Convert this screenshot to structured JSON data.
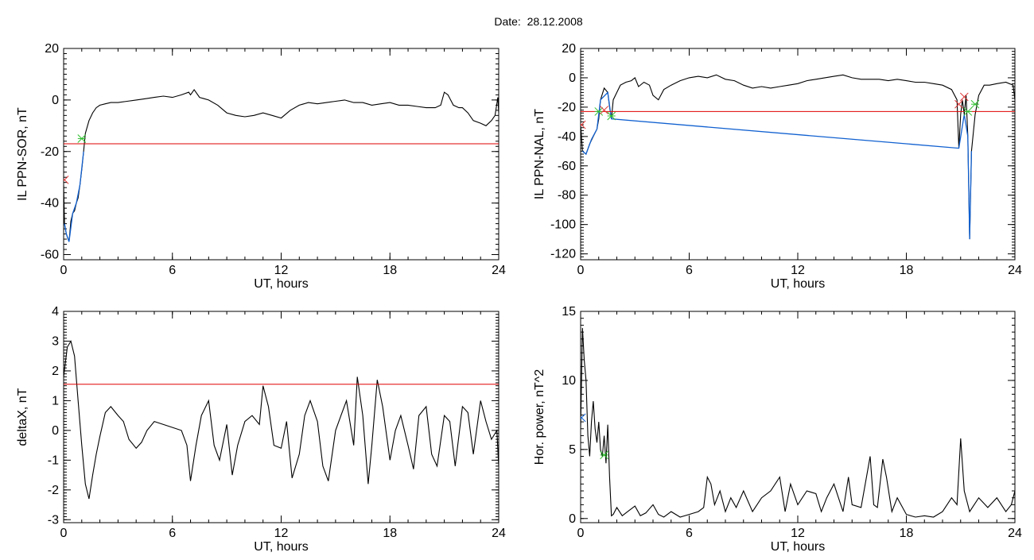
{
  "figure": {
    "title": "Date:  28.12.2008"
  },
  "colors": {
    "trace": "#000000",
    "threshold": "#e00000",
    "highlight": "#1060d0",
    "marker_red": "#e03030",
    "marker_green": "#30c030"
  },
  "chart_data": [
    {
      "type": "line",
      "id": "il-sor",
      "xlabel": "UT, hours",
      "ylabel": "IL PPN-SOR, nT",
      "xlim": [
        0,
        24
      ],
      "ylim": [
        -62,
        20
      ],
      "xticks": [
        0,
        6,
        12,
        18,
        24
      ],
      "yticks": [
        -60,
        -40,
        -20,
        0,
        20
      ],
      "threshold": -17,
      "series": [
        {
          "color": "black",
          "x": [
            0,
            0.05,
            0.15,
            0.3,
            0.4,
            0.5,
            0.6,
            0.7,
            0.8,
            0.9,
            1.0,
            1.1,
            1.2,
            1.4,
            1.6,
            1.8,
            2.0,
            2.3,
            2.6,
            3,
            3.5,
            4,
            4.5,
            5,
            5.5,
            6,
            6.5,
            6.9,
            7.0,
            7.2,
            7.5,
            8,
            8.5,
            9,
            9.5,
            10,
            10.5,
            11,
            11.5,
            12,
            12.5,
            13,
            13.5,
            14,
            14.5,
            15,
            15.5,
            16,
            16.5,
            17,
            17.5,
            18,
            18.5,
            19,
            19.5,
            20,
            20.5,
            20.8,
            21.0,
            21.2,
            21.5,
            21.8,
            22,
            22.3,
            22.6,
            23,
            23.3,
            23.6,
            23.8,
            23.95,
            24
          ],
          "y": [
            -33,
            -48,
            -52,
            -55,
            -47,
            -44,
            -43,
            -40,
            -38,
            -33,
            -27,
            -20,
            -13,
            -8,
            -5,
            -3,
            -2,
            -1.5,
            -1,
            -1,
            -0.5,
            0,
            0.5,
            1,
            1.5,
            1,
            2,
            3,
            2,
            4,
            1,
            0,
            -2,
            -5,
            -6,
            -6.5,
            -6,
            -5,
            -6,
            -7,
            -4,
            -2,
            -1,
            -1.5,
            -1,
            -0.5,
            0,
            -1,
            -1,
            -2,
            -1.5,
            -1,
            -2,
            -2,
            -2.5,
            -3,
            -3,
            -2,
            3,
            2,
            -2,
            -3,
            -3,
            -5,
            -8,
            -9,
            -10,
            -8,
            -6,
            1,
            -5
          ]
        }
      ],
      "highlight": {
        "x": [
          0.05,
          0.15,
          0.3,
          0.5,
          0.7,
          0.9,
          1.1
        ],
        "y": [
          -48,
          -52,
          -55,
          -44,
          -40,
          -33,
          -20
        ]
      },
      "markers": [
        {
          "x": 0.05,
          "y": -31,
          "color": "red"
        },
        {
          "x": 1.0,
          "y": -15,
          "color": "green"
        }
      ]
    },
    {
      "type": "line",
      "id": "il-nal",
      "xlabel": "UT, hours",
      "ylabel": "IL PPN-NAL, nT",
      "xlim": [
        0,
        24
      ],
      "ylim": [
        -124,
        20
      ],
      "xticks": [
        0,
        6,
        12,
        18,
        24
      ],
      "yticks": [
        -120,
        -100,
        -80,
        -60,
        -40,
        -20,
        0,
        20
      ],
      "threshold": -23,
      "series": [
        {
          "color": "black",
          "x": [
            0,
            0.1,
            0.3,
            0.5,
            0.7,
            0.9,
            1.0,
            1.1,
            1.3,
            1.5,
            1.6,
            1.7,
            1.8,
            2.0,
            2.2,
            2.5,
            2.8,
            3.0,
            3.2,
            3.5,
            3.8,
            4.0,
            4.3,
            4.6,
            5,
            5.5,
            6,
            6.5,
            7,
            7.5,
            8,
            8.5,
            9,
            9.5,
            10,
            10.5,
            11,
            11.5,
            12,
            12.5,
            13,
            13.5,
            14,
            14.5,
            15,
            15.5,
            16,
            16.5,
            17,
            17.5,
            18,
            18.5,
            19,
            19.5,
            20,
            20.5,
            20.8,
            20.9,
            21.0,
            21.1,
            21.2,
            21.3,
            21.4,
            21.5,
            21.6,
            21.8,
            22,
            22.3,
            22.6,
            23,
            23.5,
            23.9,
            24
          ],
          "y": [
            -32,
            -50,
            -52,
            -45,
            -40,
            -35,
            -28,
            -15,
            -7,
            -10,
            -20,
            -28,
            -15,
            -10,
            -5,
            -3,
            -2,
            0,
            -6,
            -3,
            -5,
            -12,
            -15,
            -8,
            -5,
            -2,
            0,
            1,
            0,
            2,
            -1,
            -2,
            -5,
            -7,
            -6,
            -7,
            -6,
            -5,
            -4,
            -2,
            -1,
            0,
            1,
            2,
            0,
            -1,
            -1,
            -1,
            -2,
            -1,
            -2,
            -3,
            -3,
            -4,
            -5,
            -8,
            -15,
            -48,
            -25,
            -15,
            -25,
            -12,
            -40,
            -110,
            -50,
            -25,
            -12,
            -5,
            -5,
            -4,
            -3,
            -5,
            -15
          ]
        }
      ],
      "highlight": {
        "x": [
          0.1,
          0.3,
          0.6,
          0.9,
          1.1,
          1.5,
          1.7,
          20.9,
          21.2,
          21.4,
          21.5,
          21.6
        ],
        "y": [
          -50,
          -52,
          -42,
          -35,
          -15,
          -10,
          -28,
          -48,
          -25,
          -40,
          -110,
          -50
        ]
      },
      "markers": [
        {
          "x": 0.05,
          "y": -32,
          "color": "red"
        },
        {
          "x": 1.0,
          "y": -23,
          "color": "green"
        },
        {
          "x": 1.3,
          "y": -22,
          "color": "red"
        },
        {
          "x": 1.7,
          "y": -26,
          "color": "green"
        },
        {
          "x": 20.9,
          "y": -18,
          "color": "red"
        },
        {
          "x": 21.2,
          "y": -13,
          "color": "red"
        },
        {
          "x": 21.4,
          "y": -23,
          "color": "green"
        },
        {
          "x": 21.8,
          "y": -18,
          "color": "green"
        }
      ]
    },
    {
      "type": "line",
      "id": "deltax",
      "xlabel": "UT, hours",
      "ylabel": "deltaX, nT",
      "xlim": [
        0,
        24
      ],
      "ylim": [
        -3.1,
        4
      ],
      "xticks": [
        0,
        6,
        12,
        18,
        24
      ],
      "yticks": [
        -3,
        -2,
        -1,
        0,
        1,
        2,
        3,
        4
      ],
      "threshold": 1.55,
      "series": [
        {
          "color": "black",
          "x": [
            0,
            0.2,
            0.4,
            0.6,
            0.8,
            1.0,
            1.2,
            1.4,
            1.6,
            1.8,
            2.0,
            2.3,
            2.6,
            3.0,
            3.3,
            3.6,
            4.0,
            4.3,
            4.6,
            5.0,
            5.5,
            6.0,
            6.5,
            6.8,
            7.0,
            7.3,
            7.6,
            8.0,
            8.3,
            8.6,
            9.0,
            9.3,
            9.6,
            10.0,
            10.4,
            10.8,
            11.0,
            11.3,
            11.6,
            12.0,
            12.3,
            12.6,
            13.0,
            13.3,
            13.6,
            14.0,
            14.3,
            14.6,
            15.0,
            15.3,
            15.6,
            16.0,
            16.2,
            16.5,
            16.8,
            17.0,
            17.3,
            17.6,
            18.0,
            18.3,
            18.6,
            19.0,
            19.3,
            19.6,
            20.0,
            20.3,
            20.6,
            21.0,
            21.3,
            21.6,
            22.0,
            22.3,
            22.6,
            23.0,
            23.3,
            23.6,
            23.9,
            24
          ],
          "y": [
            1.8,
            2.8,
            3.0,
            2.5,
            1.0,
            -0.5,
            -1.8,
            -2.3,
            -1.5,
            -0.8,
            -0.2,
            0.6,
            0.8,
            0.5,
            0.3,
            -0.3,
            -0.6,
            -0.4,
            0.0,
            0.3,
            0.2,
            0.1,
            0.0,
            -0.5,
            -1.7,
            -0.5,
            0.5,
            1.0,
            -0.5,
            -1.0,
            0.2,
            -1.5,
            -0.5,
            0.3,
            0.5,
            0.2,
            1.5,
            0.8,
            -0.5,
            -0.6,
            0.3,
            -1.6,
            -0.8,
            0.5,
            1.0,
            0.3,
            -1.2,
            -1.7,
            0.0,
            0.5,
            1.0,
            -0.5,
            1.8,
            0.5,
            -1.8,
            -0.5,
            1.7,
            0.8,
            -1.0,
            0.0,
            0.5,
            -0.5,
            -1.3,
            0.5,
            0.8,
            -0.8,
            -1.2,
            0.5,
            0.3,
            -1.2,
            0.8,
            0.6,
            -0.8,
            1.0,
            0.3,
            -0.3,
            0.0,
            -1.2
          ]
        }
      ]
    },
    {
      "type": "line",
      "id": "hor-power",
      "xlabel": "UT, hours",
      "ylabel": "Hor. power, nT^2",
      "xlim": [
        0,
        24
      ],
      "ylim": [
        -0.3,
        15
      ],
      "xticks": [
        0,
        6,
        12,
        18,
        24
      ],
      "yticks": [
        0,
        5,
        10,
        15
      ],
      "series": [
        {
          "color": "black",
          "x": [
            0,
            0.1,
            0.2,
            0.3,
            0.4,
            0.5,
            0.6,
            0.7,
            0.8,
            0.9,
            1.0,
            1.1,
            1.2,
            1.3,
            1.4,
            1.5,
            1.6,
            1.7,
            1.8,
            2.0,
            2.3,
            2.6,
            3.0,
            3.3,
            3.6,
            4.0,
            4.3,
            4.6,
            5.0,
            5.5,
            6.0,
            6.5,
            6.8,
            7.0,
            7.2,
            7.4,
            7.7,
            8.0,
            8.3,
            8.6,
            9.0,
            9.5,
            10.0,
            10.5,
            11.0,
            11.3,
            11.6,
            12.0,
            12.5,
            13.0,
            13.3,
            13.6,
            14.0,
            14.5,
            14.8,
            15.0,
            15.5,
            16.0,
            16.2,
            16.4,
            16.7,
            16.9,
            17.2,
            17.5,
            18.0,
            18.5,
            19.0,
            19.5,
            20.0,
            20.5,
            20.8,
            21.0,
            21.2,
            21.5,
            22.0,
            22.5,
            23.0,
            23.5,
            23.8,
            24
          ],
          "y": [
            6.5,
            13.8,
            11.5,
            10.0,
            6.0,
            4.5,
            7.0,
            8.5,
            6.5,
            5.5,
            7.0,
            5.0,
            4.5,
            6.0,
            4.0,
            6.8,
            3.0,
            0.2,
            0.3,
            0.8,
            0.2,
            0.5,
            0.9,
            0.2,
            0.4,
            1.0,
            0.3,
            0.1,
            0.5,
            0.1,
            0.3,
            0.5,
            0.8,
            3.0,
            2.5,
            1.0,
            2.0,
            0.5,
            1.5,
            0.8,
            2.0,
            0.5,
            1.5,
            2.0,
            3.0,
            0.5,
            2.5,
            1.0,
            2.0,
            1.8,
            0.5,
            1.5,
            2.5,
            0.5,
            3.0,
            1.0,
            0.8,
            4.5,
            1.0,
            0.8,
            4.3,
            3.0,
            0.5,
            1.5,
            0.3,
            0.1,
            0.2,
            0.1,
            0.5,
            1.5,
            1.0,
            5.8,
            2.0,
            0.5,
            1.5,
            0.8,
            1.5,
            0.5,
            1.0,
            2.0
          ]
        }
      ],
      "markers": [
        {
          "x": 0.05,
          "y": 7.3,
          "color": "blue"
        },
        {
          "x": 1.3,
          "y": 4.6,
          "color": "green"
        }
      ]
    }
  ]
}
